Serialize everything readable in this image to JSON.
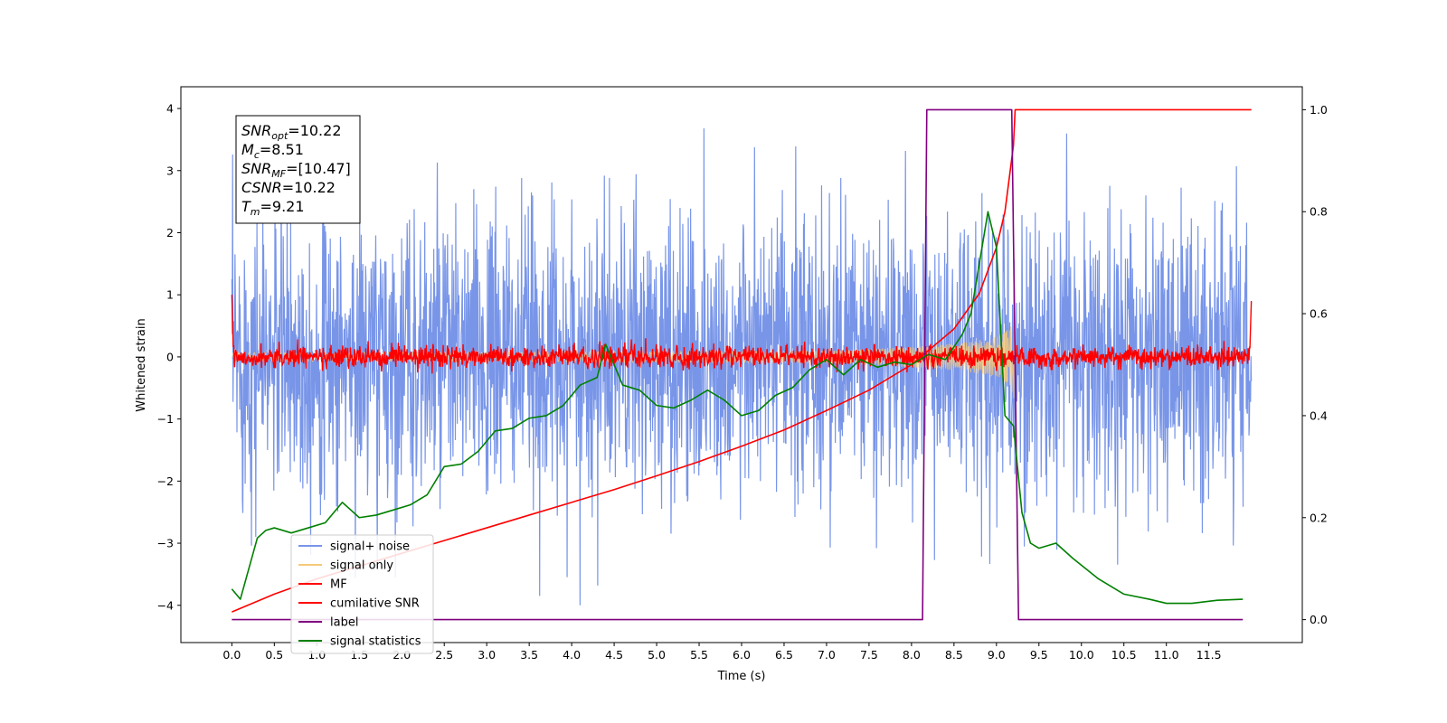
{
  "chart_data": {
    "type": "line",
    "title": "",
    "xlabel": "Time (s)",
    "ylabel": "Whitened strain",
    "ylabel_right": "",
    "xlim": [
      -0.6,
      12.6
    ],
    "ylim": [
      -4.6,
      4.35
    ],
    "ylim_right": [
      -0.045,
      1.045
    ],
    "xticks": [
      "0.0",
      "0.5",
      "1.0",
      "1.5",
      "2.0",
      "2.5",
      "3.0",
      "3.5",
      "4.0",
      "4.5",
      "5.0",
      "5.5",
      "6.0",
      "6.5",
      "7.0",
      "7.5",
      "8.0",
      "8.5",
      "9.0",
      "9.5",
      "10.0",
      "10.5",
      "11.0",
      "11.5"
    ],
    "yticks": [
      "4",
      "3",
      "2",
      "1",
      "0",
      "−1",
      "−2",
      "−3",
      "−4"
    ],
    "yticks_right": [
      "1.0",
      "0.8",
      "0.6",
      "0.4",
      "0.2",
      "0.0"
    ],
    "grid": false,
    "legend_position": "lower-left",
    "annotation": {
      "lines": [
        {
          "var": "SNR",
          "sub": "opt",
          "value": "=10.22"
        },
        {
          "var": "M",
          "sub": "c",
          "value": "=8.51"
        },
        {
          "var": "SNR",
          "sub": "MF",
          "value": "=[10.47]"
        },
        {
          "var": "CSNR",
          "sub": "",
          "value": "=10.22"
        },
        {
          "var": "T",
          "sub": "m",
          "value": "=9.21"
        }
      ]
    },
    "series": [
      {
        "name": "signal+ noise",
        "color": "#7895e8",
        "axis": "left",
        "kind": "noise",
        "std": 1.15,
        "x_range": [
          0,
          12
        ]
      },
      {
        "name": "signal only",
        "color": "#f5c97a",
        "axis": "left",
        "kind": "chirp",
        "x_range": [
          0,
          9.21
        ]
      },
      {
        "name": "MF",
        "color": "#ff0000",
        "axis": "left",
        "kind": "mf-noise",
        "x_range": [
          0,
          12
        ]
      },
      {
        "name": "cumilative SNR",
        "color": "#ff0000",
        "axis": "right",
        "x": [
          0,
          0.5,
          1,
          1.5,
          2,
          2.5,
          3,
          3.5,
          4,
          4.5,
          5,
          5.5,
          6,
          6.5,
          7,
          7.5,
          8,
          8.5,
          8.8,
          9.0,
          9.1,
          9.2,
          9.22,
          12
        ],
        "y": [
          0.015,
          0.05,
          0.08,
          0.105,
          0.13,
          0.155,
          0.18,
          0.205,
          0.23,
          0.255,
          0.282,
          0.31,
          0.34,
          0.372,
          0.41,
          0.45,
          0.5,
          0.57,
          0.64,
          0.73,
          0.8,
          0.93,
          1.0,
          1.0
        ]
      },
      {
        "name": "label",
        "color": "#800080",
        "axis": "right",
        "x": [
          0,
          8.13,
          8.18,
          9.18,
          9.26,
          11.9
        ],
        "y": [
          0,
          0,
          1,
          1,
          0,
          0
        ]
      },
      {
        "name": "signal statistics",
        "color": "#008000",
        "axis": "right",
        "x": [
          0,
          0.1,
          0.2,
          0.3,
          0.4,
          0.5,
          0.7,
          0.9,
          1.1,
          1.3,
          1.5,
          1.7,
          1.9,
          2.1,
          2.3,
          2.5,
          2.7,
          2.9,
          3.1,
          3.3,
          3.5,
          3.7,
          3.9,
          4.1,
          4.3,
          4.4,
          4.6,
          4.8,
          5.0,
          5.2,
          5.4,
          5.6,
          5.8,
          6.0,
          6.2,
          6.4,
          6.6,
          6.8,
          7.0,
          7.2,
          7.4,
          7.6,
          7.8,
          8.0,
          8.2,
          8.4,
          8.6,
          8.7,
          8.8,
          8.9,
          9.0,
          9.1,
          9.2,
          9.3,
          9.4,
          9.5,
          9.7,
          9.9,
          10.2,
          10.5,
          10.8,
          11.0,
          11.3,
          11.6,
          11.9
        ],
        "y": [
          0.06,
          0.04,
          0.1,
          0.16,
          0.175,
          0.18,
          0.17,
          0.18,
          0.19,
          0.23,
          0.2,
          0.205,
          0.215,
          0.225,
          0.245,
          0.3,
          0.305,
          0.33,
          0.37,
          0.375,
          0.395,
          0.4,
          0.42,
          0.46,
          0.475,
          0.54,
          0.46,
          0.45,
          0.42,
          0.415,
          0.43,
          0.45,
          0.43,
          0.4,
          0.41,
          0.44,
          0.455,
          0.49,
          0.51,
          0.48,
          0.51,
          0.495,
          0.505,
          0.5,
          0.52,
          0.51,
          0.56,
          0.6,
          0.7,
          0.8,
          0.73,
          0.4,
          0.38,
          0.21,
          0.15,
          0.14,
          0.15,
          0.12,
          0.08,
          0.05,
          0.04,
          0.032,
          0.032,
          0.038,
          0.04
        ]
      }
    ]
  }
}
